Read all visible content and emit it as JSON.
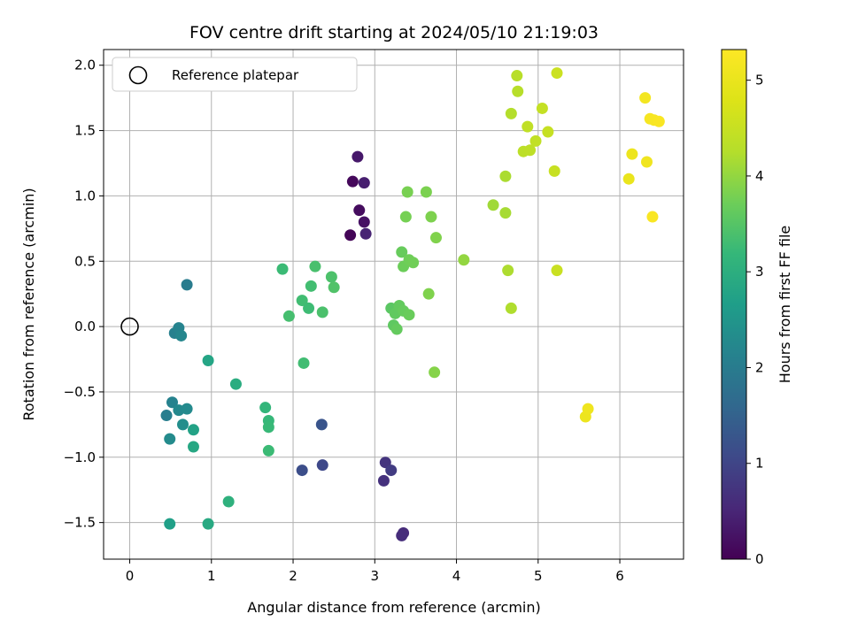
{
  "chart_data": {
    "type": "scatter",
    "title": "FOV centre drift starting at 2024/05/10 21:19:03",
    "xlabel": "Angular distance from reference (arcmin)",
    "ylabel": "Rotation from reference (arcmin)",
    "xlim": [
      -0.32,
      6.78
    ],
    "ylim": [
      -1.78,
      2.12
    ],
    "xticks": [
      0,
      1,
      2,
      3,
      4,
      5,
      6
    ],
    "yticks": [
      -1.5,
      -1.0,
      -0.5,
      0.0,
      0.5,
      1.0,
      1.5,
      2.0
    ],
    "xtick_labels": [
      "0",
      "1",
      "2",
      "3",
      "4",
      "5",
      "6"
    ],
    "ytick_labels": [
      "−1.5",
      "−1.0",
      "−0.5",
      "0.0",
      "0.5",
      "1.0",
      "1.5",
      "2.0"
    ],
    "grid": true,
    "colormap": "viridis",
    "colorbar": {
      "label": "Hours from first FF file",
      "range": [
        0,
        5.32
      ],
      "ticks": [
        0,
        1,
        2,
        3,
        4,
        5
      ],
      "tick_labels": [
        "0",
        "1",
        "2",
        "3",
        "4",
        "5"
      ]
    },
    "legend": {
      "position": "top-left",
      "entries": [
        {
          "label": "Reference platepar",
          "marker": "open-circle"
        }
      ]
    },
    "reference_point": {
      "x": 0,
      "y": 0
    },
    "points": [
      {
        "x": 2.7,
        "y": 0.7,
        "t": 0.05
      },
      {
        "x": 2.73,
        "y": 1.11,
        "t": 0.1
      },
      {
        "x": 2.81,
        "y": 0.89,
        "t": 0.15
      },
      {
        "x": 2.87,
        "y": 0.8,
        "t": 0.22
      },
      {
        "x": 2.79,
        "y": 1.3,
        "t": 0.32
      },
      {
        "x": 2.87,
        "y": 1.1,
        "t": 0.4
      },
      {
        "x": 2.89,
        "y": 0.71,
        "t": 0.48
      },
      {
        "x": 3.35,
        "y": -1.58,
        "t": 0.6
      },
      {
        "x": 3.33,
        "y": -1.6,
        "t": 0.62
      },
      {
        "x": 3.11,
        "y": -1.18,
        "t": 0.68
      },
      {
        "x": 3.13,
        "y": -1.04,
        "t": 0.72
      },
      {
        "x": 3.2,
        "y": -1.1,
        "t": 0.85
      },
      {
        "x": 2.36,
        "y": -1.06,
        "t": 1.05
      },
      {
        "x": 2.11,
        "y": -1.1,
        "t": 1.15
      },
      {
        "x": 2.35,
        "y": -0.75,
        "t": 1.25
      },
      {
        "x": 0.7,
        "y": 0.32,
        "t": 2.0
      },
      {
        "x": 0.55,
        "y": -0.05,
        "t": 2.08
      },
      {
        "x": 0.6,
        "y": -0.01,
        "t": 2.15
      },
      {
        "x": 0.63,
        "y": -0.07,
        "t": 2.2
      },
      {
        "x": 0.45,
        "y": -0.68,
        "t": 2.05
      },
      {
        "x": 0.52,
        "y": -0.58,
        "t": 2.12
      },
      {
        "x": 0.6,
        "y": -0.64,
        "t": 2.25
      },
      {
        "x": 0.7,
        "y": -0.63,
        "t": 2.28
      },
      {
        "x": 0.65,
        "y": -0.75,
        "t": 2.35
      },
      {
        "x": 0.49,
        "y": -0.86,
        "t": 2.3
      },
      {
        "x": 0.78,
        "y": -0.79,
        "t": 2.75
      },
      {
        "x": 0.78,
        "y": -0.92,
        "t": 2.85
      },
      {
        "x": 0.96,
        "y": -0.26,
        "t": 2.8
      },
      {
        "x": 1.3,
        "y": -0.44,
        "t": 2.95
      },
      {
        "x": 0.49,
        "y": -1.51,
        "t": 2.7
      },
      {
        "x": 0.96,
        "y": -1.51,
        "t": 2.9
      },
      {
        "x": 1.21,
        "y": -1.34,
        "t": 3.05
      },
      {
        "x": 1.66,
        "y": -0.62,
        "t": 3.15
      },
      {
        "x": 1.7,
        "y": -0.72,
        "t": 3.2
      },
      {
        "x": 1.7,
        "y": -0.77,
        "t": 3.22
      },
      {
        "x": 1.7,
        "y": -0.95,
        "t": 3.25
      },
      {
        "x": 2.13,
        "y": -0.28,
        "t": 3.3
      },
      {
        "x": 1.87,
        "y": 0.44,
        "t": 3.25
      },
      {
        "x": 1.95,
        "y": 0.08,
        "t": 3.35
      },
      {
        "x": 2.11,
        "y": 0.2,
        "t": 3.3
      },
      {
        "x": 2.19,
        "y": 0.14,
        "t": 3.28
      },
      {
        "x": 2.22,
        "y": 0.31,
        "t": 3.32
      },
      {
        "x": 2.27,
        "y": 0.46,
        "t": 3.38
      },
      {
        "x": 2.36,
        "y": 0.11,
        "t": 3.4
      },
      {
        "x": 2.47,
        "y": 0.38,
        "t": 3.42
      },
      {
        "x": 2.5,
        "y": 0.3,
        "t": 3.45
      },
      {
        "x": 3.2,
        "y": 0.14,
        "t": 3.55
      },
      {
        "x": 3.25,
        "y": 0.1,
        "t": 3.6
      },
      {
        "x": 3.3,
        "y": 0.16,
        "t": 3.62
      },
      {
        "x": 3.23,
        "y": 0.01,
        "t": 3.58
      },
      {
        "x": 3.27,
        "y": -0.02,
        "t": 3.63
      },
      {
        "x": 3.35,
        "y": 0.12,
        "t": 3.65
      },
      {
        "x": 3.42,
        "y": 0.09,
        "t": 3.68
      },
      {
        "x": 3.33,
        "y": 0.57,
        "t": 3.66
      },
      {
        "x": 3.35,
        "y": 0.46,
        "t": 3.7
      },
      {
        "x": 3.42,
        "y": 0.51,
        "t": 3.72
      },
      {
        "x": 3.47,
        "y": 0.49,
        "t": 3.74
      },
      {
        "x": 3.38,
        "y": 0.84,
        "t": 3.78
      },
      {
        "x": 3.4,
        "y": 1.03,
        "t": 3.8
      },
      {
        "x": 3.63,
        "y": 1.03,
        "t": 3.82
      },
      {
        "x": 3.69,
        "y": 0.84,
        "t": 3.84
      },
      {
        "x": 3.75,
        "y": 0.68,
        "t": 3.86
      },
      {
        "x": 3.66,
        "y": 0.25,
        "t": 3.85
      },
      {
        "x": 3.73,
        "y": -0.35,
        "t": 3.9
      },
      {
        "x": 4.09,
        "y": 0.51,
        "t": 4.0
      },
      {
        "x": 4.45,
        "y": 0.93,
        "t": 4.1
      },
      {
        "x": 4.6,
        "y": 0.87,
        "t": 4.15
      },
      {
        "x": 4.6,
        "y": 1.15,
        "t": 4.18
      },
      {
        "x": 4.63,
        "y": 0.43,
        "t": 4.2
      },
      {
        "x": 4.67,
        "y": 0.14,
        "t": 4.22
      },
      {
        "x": 4.67,
        "y": 1.63,
        "t": 4.25
      },
      {
        "x": 4.75,
        "y": 1.8,
        "t": 4.28
      },
      {
        "x": 4.74,
        "y": 1.92,
        "t": 4.3
      },
      {
        "x": 4.82,
        "y": 1.34,
        "t": 4.35
      },
      {
        "x": 4.9,
        "y": 1.35,
        "t": 4.38
      },
      {
        "x": 4.87,
        "y": 1.53,
        "t": 4.4
      },
      {
        "x": 4.97,
        "y": 1.42,
        "t": 4.42
      },
      {
        "x": 5.05,
        "y": 1.67,
        "t": 4.45
      },
      {
        "x": 5.12,
        "y": 1.49,
        "t": 4.48
      },
      {
        "x": 5.2,
        "y": 1.19,
        "t": 4.5
      },
      {
        "x": 5.23,
        "y": 0.43,
        "t": 4.52
      },
      {
        "x": 5.23,
        "y": 1.94,
        "t": 4.55
      },
      {
        "x": 5.58,
        "y": -0.69,
        "t": 5.05
      },
      {
        "x": 5.61,
        "y": -0.63,
        "t": 5.08
      },
      {
        "x": 6.11,
        "y": 1.13,
        "t": 5.0
      },
      {
        "x": 6.15,
        "y": 1.32,
        "t": 5.05
      },
      {
        "x": 6.31,
        "y": 1.75,
        "t": 5.15
      },
      {
        "x": 6.33,
        "y": 1.26,
        "t": 5.1
      },
      {
        "x": 6.37,
        "y": 1.59,
        "t": 5.2
      },
      {
        "x": 6.42,
        "y": 1.58,
        "t": 5.22
      },
      {
        "x": 6.48,
        "y": 1.57,
        "t": 5.25
      },
      {
        "x": 6.4,
        "y": 0.84,
        "t": 5.25
      }
    ]
  }
}
